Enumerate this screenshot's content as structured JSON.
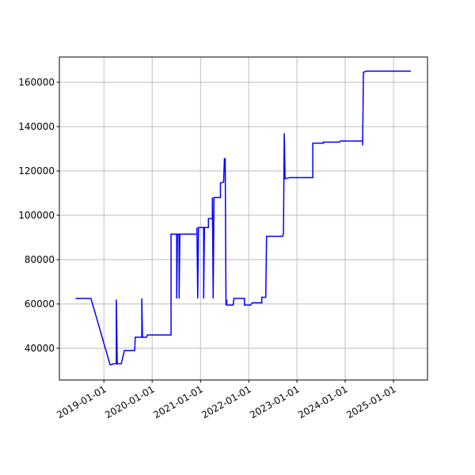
{
  "chart_data": {
    "type": "line",
    "color": "#0000ff",
    "grid": true,
    "x": [
      "2018-06-01",
      "2018-09-25",
      "2019-02-17",
      "2019-03-15",
      "2019-04-05",
      "2019-04-05",
      "2019-04-12",
      "2019-05-12",
      "2019-06-05",
      "2019-08-22",
      "2019-08-26",
      "2019-10-15",
      "2019-10-15",
      "2019-10-20",
      "2019-11-20",
      "2019-11-25",
      "2020-05-23",
      "2020-05-23",
      "2020-07-05",
      "2020-07-05",
      "2020-07-11",
      "2020-07-23",
      "2020-07-23",
      "2020-07-29",
      "2020-12-05",
      "2020-12-05",
      "2020-12-11",
      "2020-12-17",
      "2021-01-25",
      "2021-01-25",
      "2021-01-31",
      "2021-03-02",
      "2021-03-02",
      "2021-04-01",
      "2021-04-01",
      "2021-04-07",
      "2021-04-13",
      "2021-06-01",
      "2021-06-01",
      "2021-06-25",
      "2021-07-01",
      "2021-07-07",
      "2021-07-13",
      "2021-07-19",
      "2021-07-19",
      "2021-09-05",
      "2021-09-11",
      "2021-11-30",
      "2021-11-30",
      "2022-01-15",
      "2022-01-27",
      "2022-04-10",
      "2022-04-10",
      "2022-05-10",
      "2022-05-16",
      "2022-09-15",
      "2022-09-21",
      "2022-09-27",
      "2022-10-03",
      "2022-11-08",
      "2023-05-01",
      "2023-05-01",
      "2023-07-20",
      "2023-07-20",
      "2023-11-20",
      "2023-11-26",
      "2024-05-12",
      "2024-05-12",
      "2024-05-18",
      "2024-06-11",
      "2025-05-12"
    ],
    "values": [
      62500,
      62500,
      32500,
      33000,
      33000,
      62000,
      33000,
      33000,
      39000,
      39000,
      45000,
      45000,
      62500,
      45000,
      45000,
      46000,
      46000,
      91500,
      91500,
      62500,
      91500,
      91500,
      62500,
      91500,
      91500,
      94500,
      62500,
      94500,
      94500,
      62500,
      94500,
      94500,
      98500,
      98500,
      108000,
      62500,
      108000,
      108000,
      114500,
      115000,
      125500,
      125500,
      59500,
      62000,
      59500,
      59500,
      62500,
      62500,
      59500,
      59500,
      60500,
      60500,
      63000,
      63000,
      90500,
      90500,
      92000,
      137000,
      116500,
      117000,
      117000,
      132500,
      132500,
      133000,
      133000,
      133500,
      133500,
      131500,
      164500,
      165000,
      165000
    ],
    "xlim": [
      "2018-01-29",
      "2025-09-15"
    ],
    "xticks": [
      "2019-01-01",
      "2020-01-01",
      "2021-01-01",
      "2022-01-01",
      "2023-01-01",
      "2024-01-01",
      "2025-01-01"
    ],
    "ylim": [
      25700,
      171400
    ],
    "yticks": [
      40000,
      60000,
      80000,
      100000,
      120000,
      140000,
      160000
    ]
  }
}
